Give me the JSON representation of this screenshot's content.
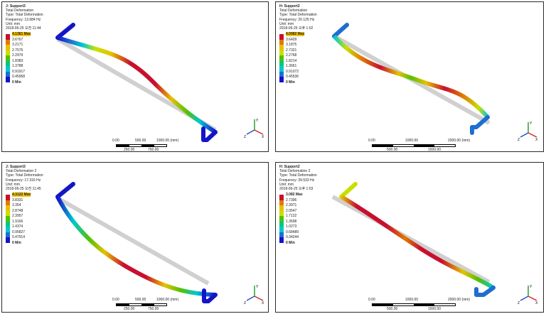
{
  "legend_colors": [
    "#c8102e",
    "#e07a00",
    "#e6c200",
    "#c8e000",
    "#52c200",
    "#00c87a",
    "#00c8d2",
    "#1e6ed2",
    "#1414c8"
  ],
  "panels": [
    {
      "title": "J: Support3",
      "lines": [
        "Total Deformation",
        "Type: Total Deformation",
        "Frequency: 13.684 Hz",
        "Unit: mm",
        "2018-06-25 오전 11:44"
      ],
      "legend": [
        "4.1361 Max",
        "3.6767",
        "3.2171",
        "2.7575",
        "2.2979",
        "1.8383",
        "1.3788",
        "0.91917",
        "0.45958",
        "0 Min"
      ],
      "scale": {
        "top": [
          "0.00",
          "500.00",
          "1000.00 (mm)"
        ],
        "bottom": [
          "250.00",
          "750.00"
        ]
      }
    },
    {
      "title": "H: Support2",
      "lines": [
        "Total Deformation",
        "Type: Total Deformation",
        "Frequency: 20.125 Hz",
        "Unit: mm",
        "2018-06-25 오후 1:02"
      ],
      "legend": [
        "4.0982 Max",
        "3.6429",
        "3.1875",
        "2.7321",
        "2.2768",
        "1.8214",
        "1.3661",
        "0.91072",
        "0.45536",
        "0 Min"
      ],
      "scale": {
        "top": [
          "0.00",
          "1000.00",
          "2000.00 (mm)"
        ],
        "bottom": [
          "500.00",
          "1500.00"
        ]
      }
    },
    {
      "title": "J: Support3",
      "lines": [
        "Total Deformation 2",
        "Type: Total Deformation",
        "Frequency: 17.316 Hz",
        "Unit: mm",
        "2018-06-25 오전 11:45"
      ],
      "legend": [
        "4.3122 Max",
        "3.8331",
        "3.354",
        "2.8748",
        "2.3957",
        "1.9166",
        "1.4374",
        "0.95827",
        "0.47914",
        "0 Min"
      ],
      "scale": {
        "top": [
          "0.00",
          "500.00",
          "1000.00 (mm)"
        ],
        "bottom": [
          "250.00",
          "750.00"
        ]
      }
    },
    {
      "title": "H: Support2",
      "lines": [
        "Total Deformation 2",
        "Type: Total Deformation",
        "Frequency: 39.533 Hz",
        "Unit: mm",
        "2018-06-25 오후 1:03"
      ],
      "legend": [
        "3.082 Max",
        "2.7396",
        "2.3971",
        "2.0547",
        "1.7122",
        "1.3698",
        "1.0273",
        "0.68489",
        "0.34244",
        "0 Min"
      ],
      "scale": {
        "top": [
          "0.00",
          "1000.00",
          "2000.00 (mm)"
        ],
        "bottom": [
          "500.00",
          "1500.00"
        ]
      }
    }
  ],
  "triad": {
    "x": "X",
    "y": "Y",
    "z": "Z"
  }
}
